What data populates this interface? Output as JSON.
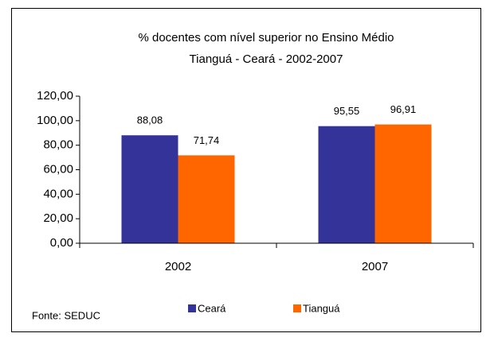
{
  "chart_data": {
    "type": "bar",
    "title": "% docentes com nível superior no Ensino Médio",
    "subtitle": "Tianguá -  Ceará - 2002-2007",
    "categories": [
      "2002",
      "2007"
    ],
    "series": [
      {
        "name": "Ceará",
        "color": "#333399",
        "values": [
          88.08,
          95.55
        ],
        "value_labels": [
          "88,08",
          "95,55"
        ]
      },
      {
        "name": "Tianguá",
        "color": "#ff6600",
        "values": [
          71.74,
          96.91
        ],
        "value_labels": [
          "71,74",
          "96,91"
        ]
      }
    ],
    "ylim": [
      0,
      120
    ],
    "yticks": [
      {
        "value": 0,
        "label": "0,00"
      },
      {
        "value": 20,
        "label": "20,00"
      },
      {
        "value": 40,
        "label": "40,00"
      },
      {
        "value": 60,
        "label": "60,00"
      },
      {
        "value": 80,
        "label": "80,00"
      },
      {
        "value": 100,
        "label": "100,00"
      },
      {
        "value": 120,
        "label": "120,00"
      }
    ],
    "source": "Fonte: SEDUC",
    "legend": "bottom"
  }
}
